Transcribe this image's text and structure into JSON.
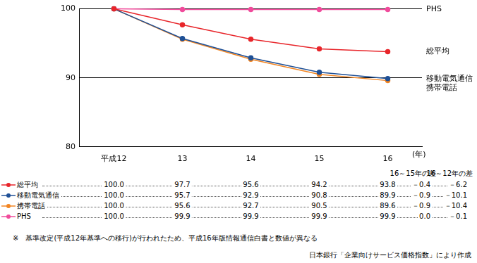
{
  "chart_data": {
    "type": "line",
    "categories": [
      "平成12",
      "13",
      "14",
      "15",
      "16"
    ],
    "x_label": "(年)",
    "ylim": [
      80,
      100
    ],
    "yticks": [
      80,
      90,
      100
    ],
    "grid": true,
    "marker": "circle",
    "diff_columns": [
      "16～15年の差",
      "16～12年の差"
    ],
    "series": [
      {
        "name": "総平均",
        "color": "#e8262b",
        "values": [
          100.0,
          97.7,
          95.6,
          94.2,
          93.8
        ],
        "value_labels": [
          "100.0",
          "97.7",
          "95.6",
          "94.2",
          "93.8"
        ],
        "diffs": [
          "－0.4",
          "－6.2"
        ]
      },
      {
        "name": "移動電気通信",
        "color": "#1f5096",
        "values": [
          100.0,
          95.7,
          92.9,
          90.8,
          89.9
        ],
        "value_labels": [
          "100.0",
          "95.7",
          "92.9",
          "90.8",
          "89.9"
        ],
        "diffs": [
          "－0.9",
          "－10.1"
        ]
      },
      {
        "name": "携帯電話",
        "color": "#f28522",
        "values": [
          100.0,
          95.6,
          92.7,
          90.5,
          89.6
        ],
        "value_labels": [
          "100.0",
          "95.6",
          "92.7",
          "90.5",
          "89.6"
        ],
        "diffs": [
          "－0.9",
          "－10.4"
        ]
      },
      {
        "name": "PHS",
        "color": "#f04b9b",
        "values": [
          100.0,
          99.9,
          99.9,
          99.9,
          99.9
        ],
        "value_labels": [
          "100.0",
          "99.9",
          "99.9",
          "99.9",
          "99.9"
        ],
        "diffs": [
          "0.0",
          "－0.1"
        ]
      }
    ],
    "note": "※　基準改定(平成12年基準への移行)が行われたため、平成16年版情報通信白書と数値が異なる",
    "source": "日本銀行「企業向けサービス価格指数」により作成"
  }
}
